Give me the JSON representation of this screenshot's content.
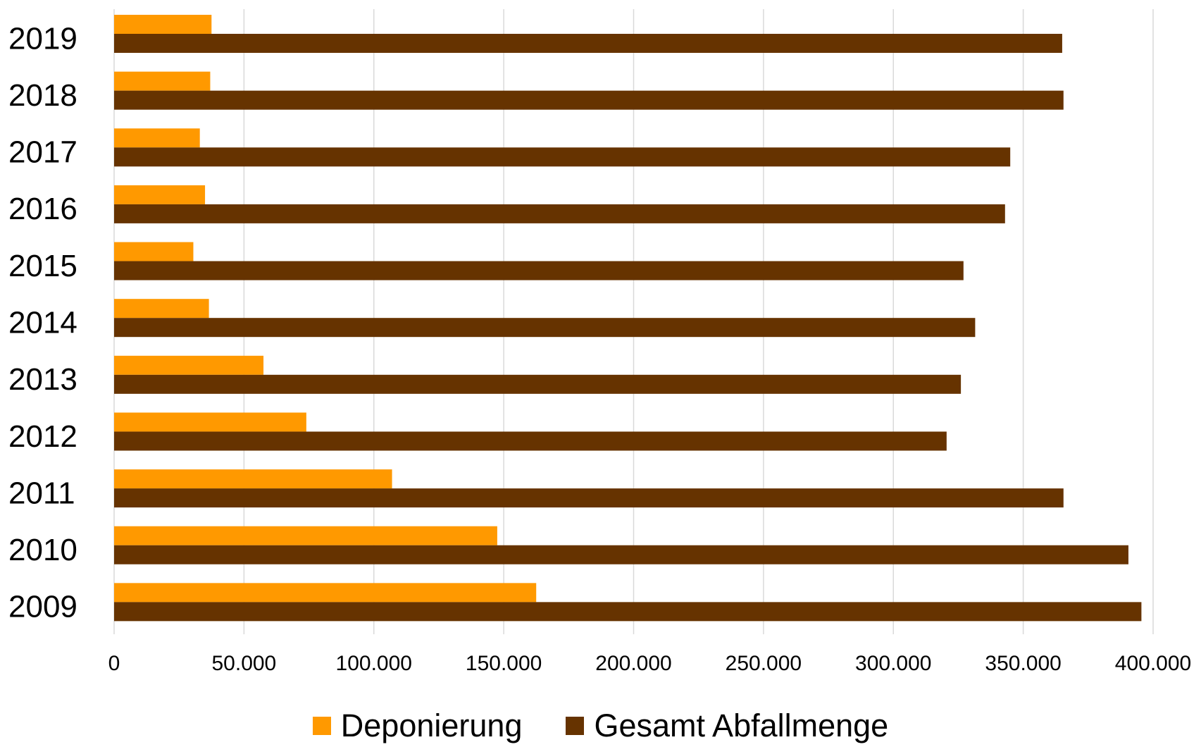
{
  "chart_data": {
    "type": "bar",
    "orientation": "horizontal",
    "categories": [
      "2019",
      "2018",
      "2017",
      "2016",
      "2015",
      "2014",
      "2013",
      "2012",
      "2011",
      "2010",
      "2009"
    ],
    "series": [
      {
        "name": "Deponierung",
        "color": "#FF9900",
        "values": [
          37500,
          37000,
          33000,
          35000,
          30500,
          36500,
          57500,
          74000,
          107000,
          147500,
          162500
        ]
      },
      {
        "name": "Gesamt Abfallmenge",
        "color": "#663300",
        "values": [
          365000,
          365500,
          345000,
          343000,
          327000,
          331500,
          326000,
          320500,
          365500,
          390500,
          395500
        ]
      }
    ],
    "xlim": [
      0,
      400000
    ],
    "xticks": [
      "0",
      "50.000",
      "100.000",
      "150.000",
      "200.000",
      "250.000",
      "300.000",
      "350.000",
      "400.000"
    ],
    "grid": true,
    "legend_position": "bottom"
  }
}
